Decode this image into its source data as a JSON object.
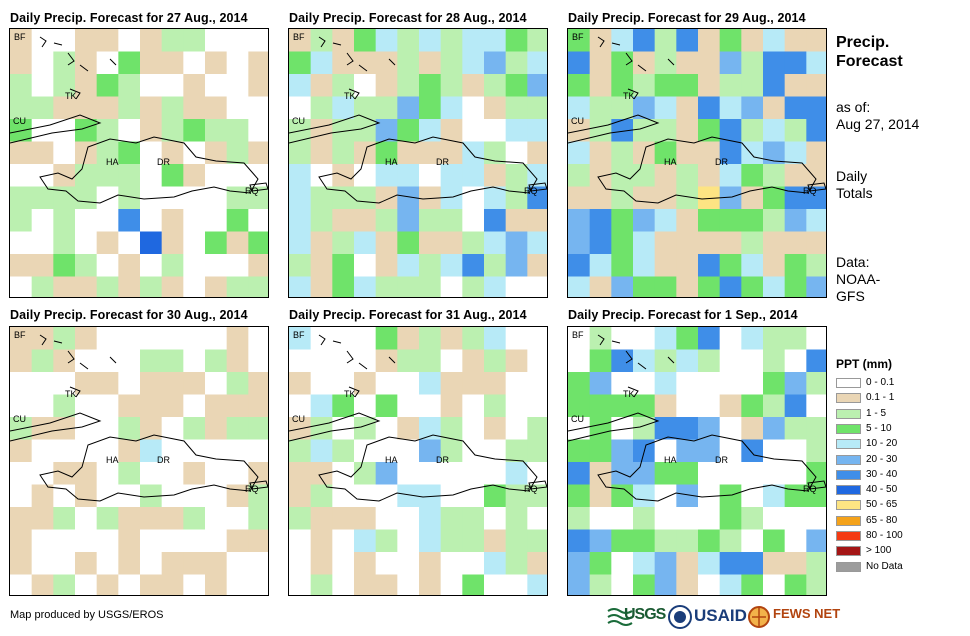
{
  "panels": [
    {
      "title": "Daily Precip. Forecast for 27 Aug., 2014"
    },
    {
      "title": "Daily Precip. Forecast for 28 Aug., 2014"
    },
    {
      "title": "Daily Precip. Forecast for 29 Aug., 2014"
    },
    {
      "title": "Daily Precip. Forecast for 30 Aug., 2014"
    },
    {
      "title": "Daily Precip. Forecast for 31 Aug., 2014"
    },
    {
      "title": "Daily Precip. Forecast for 1 Sep., 2014"
    }
  ],
  "map_labels": {
    "bf": "BF",
    "tk": "TK",
    "cu": "CU",
    "ha": "HA",
    "dr": "DR",
    "rq": "RQ"
  },
  "sidebar": {
    "heading1": "Precip.",
    "heading2": "Forecast",
    "asof1": "as of:",
    "asof2": "Aug 27, 2014",
    "daily1": "Daily",
    "daily2": "Totals",
    "data1": "Data:",
    "data2": "NOAA-",
    "data3": "GFS"
  },
  "legend": {
    "title": "PPT (mm)",
    "items": [
      {
        "label": "0 - 0.1",
        "color": "#ffffff"
      },
      {
        "label": "0.1 - 1",
        "color": "#ead6b5"
      },
      {
        "label": "1 - 5",
        "color": "#bbf0b0"
      },
      {
        "label": "5 - 10",
        "color": "#6fe36a"
      },
      {
        "label": "10 - 20",
        "color": "#b7eaf7"
      },
      {
        "label": "20 - 30",
        "color": "#76b5f0"
      },
      {
        "label": "30 - 40",
        "color": "#3f8ee8"
      },
      {
        "label": "40 - 50",
        "color": "#1f68e0"
      },
      {
        "label": "50 - 65",
        "color": "#fde483"
      },
      {
        "label": "65 - 80",
        "color": "#f4a21a"
      },
      {
        "label": "80 - 100",
        "color": "#f43a12"
      },
      {
        "label": "> 100",
        "color": "#a41515"
      },
      {
        "label": "No Data",
        "color": "#9c9c9c"
      }
    ]
  },
  "footer": {
    "credit": "Map produced by USGS/EROS"
  },
  "logos": {
    "usgs": "USGS",
    "usaid": "USAID",
    "fews": "FEWS NET"
  }
}
